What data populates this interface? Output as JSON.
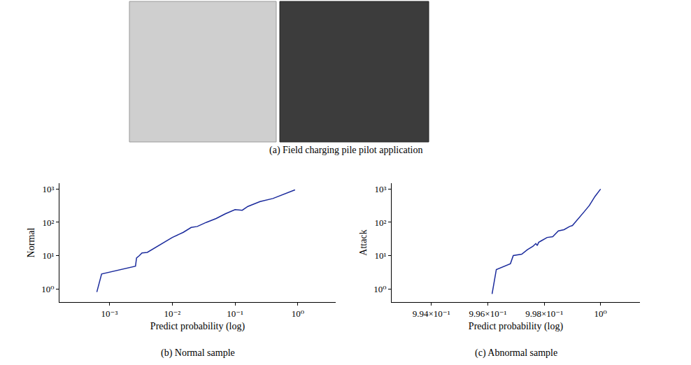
{
  "panel_a": {
    "caption": "(a) Field charging pile pilot application"
  },
  "chart_data": [
    {
      "type": "line",
      "title": "(b) Normal sample",
      "x_label": "Predict probability (log)",
      "y_label": "Normal",
      "log": true,
      "grid": false,
      "color": "#1a2a9c",
      "x": [
        0.00063,
        0.00065,
        0.00075,
        0.0026,
        0.0027,
        0.003,
        0.0033,
        0.004,
        0.006,
        0.01,
        0.015,
        0.02,
        0.025,
        0.035,
        0.05,
        0.07,
        0.1,
        0.13,
        0.16,
        0.25,
        0.4,
        0.6,
        0.8,
        0.9
      ],
      "values": [
        0.8,
        1.0,
        2.8,
        4.8,
        8.5,
        10,
        12,
        12.5,
        20,
        35,
        50,
        70,
        75,
        100,
        130,
        180,
        240,
        230,
        300,
        420,
        520,
        700,
        850,
        950
      ],
      "xlim": [
        0.00016,
        4
      ],
      "ylim": [
        0.4,
        1500
      ],
      "xticks": [
        {
          "value": 0.001,
          "label": "10⁻³"
        },
        {
          "value": 0.01,
          "label": "10⁻²"
        },
        {
          "value": 0.1,
          "label": "10⁻¹"
        },
        {
          "value": 1,
          "label": "10⁰"
        }
      ],
      "yticks": [
        {
          "value": 1,
          "label": "10⁰"
        },
        {
          "value": 10,
          "label": "10¹"
        },
        {
          "value": 100,
          "label": "10²"
        },
        {
          "value": 1000,
          "label": "10³"
        }
      ]
    },
    {
      "type": "line",
      "title": "(c) Abnormal sample",
      "x_label": "Predict probability (log)",
      "y_label": "Attack",
      "log": true,
      "grid": false,
      "color": "#1a2a9c",
      "x": [
        0.99615,
        0.99618,
        0.9963,
        0.9968,
        0.9969,
        0.9972,
        0.9974,
        0.9976,
        0.9977,
        0.99775,
        0.9978,
        0.9979,
        0.9981,
        0.9983,
        0.9985,
        0.9987,
        0.9989,
        0.999,
        0.9992,
        0.9994,
        0.9996,
        0.9998,
        1.0
      ],
      "values": [
        0.7,
        1.0,
        3.8,
        5.7,
        10,
        11,
        15,
        19,
        23,
        20,
        25,
        28,
        35,
        37,
        55,
        60,
        75,
        80,
        130,
        200,
        320,
        600,
        1000
      ],
      "xlim": [
        0.9926,
        1.0014
      ],
      "ylim": [
        0.4,
        1500
      ],
      "xticks": [
        {
          "value": 0.994,
          "label": "9.94×10⁻¹"
        },
        {
          "value": 0.996,
          "label": "9.96×10⁻¹"
        },
        {
          "value": 0.998,
          "label": "9.98×10⁻¹"
        },
        {
          "value": 1,
          "label": "10⁰"
        }
      ],
      "yticks": [
        {
          "value": 1,
          "label": "10⁰"
        },
        {
          "value": 10,
          "label": "10¹"
        },
        {
          "value": 100,
          "label": "10²"
        },
        {
          "value": 1000,
          "label": "10³"
        }
      ]
    }
  ]
}
